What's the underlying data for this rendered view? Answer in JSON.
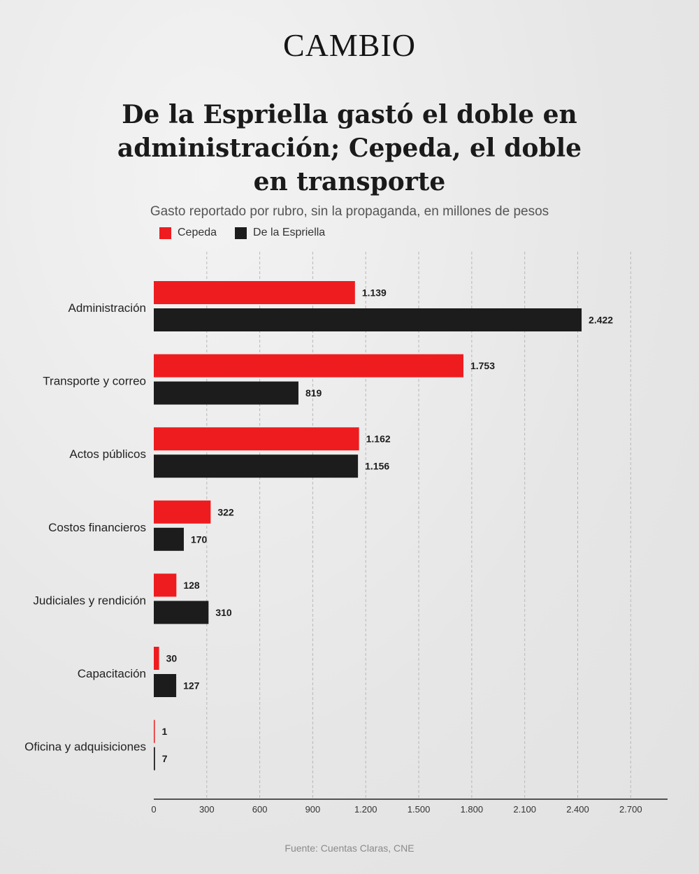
{
  "brand": {
    "logo_text": "CAMBIO"
  },
  "colors": {
    "cepeda": "#ee1c1f",
    "espriella": "#1c1c1c",
    "grid": "#b8b8b8"
  },
  "source_text": "Fuente: Cuentas Claras, CNE",
  "chart_data": {
    "type": "bar",
    "orientation": "horizontal",
    "title": "De la Espriella gastó el doble en administración; Cepeda, el doble en transporte",
    "subtitle": "Gasto reportado por rubro, sin la propaganda, en millones de pesos",
    "categories": [
      "Administración",
      "Transporte y correo",
      "Actos públicos",
      "Costos financieros",
      "Judiciales y rendición",
      "Capacitación",
      "Oficina y adquisiciones"
    ],
    "series": [
      {
        "name": "Cepeda",
        "values": [
          1139,
          1753,
          1162,
          322,
          128,
          30,
          1
        ],
        "labels": [
          "1.139",
          "1.753",
          "1.162",
          "322",
          "128",
          "30",
          "1"
        ]
      },
      {
        "name": "De la Espriella",
        "values": [
          2422,
          819,
          1156,
          170,
          310,
          127,
          7
        ],
        "labels": [
          "2.422",
          "819",
          "1.156",
          "170",
          "310",
          "127",
          "7"
        ]
      }
    ],
    "xlim": [
      0,
      2900
    ],
    "xticks": [
      0,
      300,
      600,
      900,
      1200,
      1500,
      1800,
      2100,
      2400,
      2700
    ],
    "xtick_labels": [
      "0",
      "300",
      "600",
      "900",
      "1.200",
      "1.500",
      "1.800",
      "2.100",
      "2.400",
      "2.700"
    ],
    "grid": true,
    "legend_position": "top-left"
  }
}
